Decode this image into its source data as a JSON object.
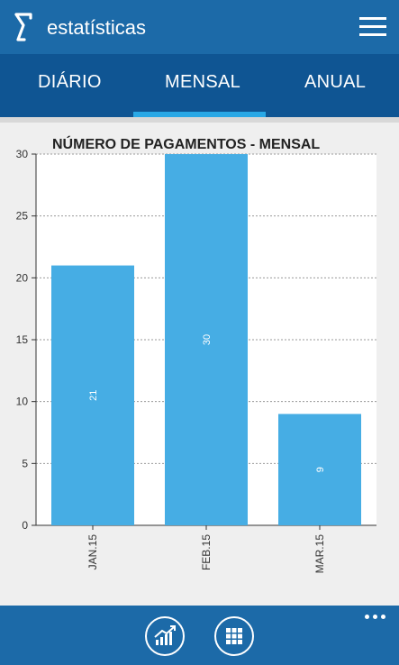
{
  "header": {
    "title": "estatísticas"
  },
  "tabs": [
    {
      "label": "DIÁRIO"
    },
    {
      "label": "MENSAL"
    },
    {
      "label": "ANUAL"
    }
  ],
  "selected_tab": "MENSAL",
  "colors": {
    "header": "#1c6aa8",
    "tabs": "#0f5593",
    "accent": "#29a8e6",
    "bar": "#46ade4"
  },
  "icons": {
    "logo": "sigma-logo-icon",
    "menu": "hamburger-menu-icon",
    "stats": "growth-chart-icon",
    "grid": "grid-icon",
    "more": "more-dots-icon"
  },
  "chart_data": {
    "type": "bar",
    "title": "NÚMERO DE PAGAMENTOS - MENSAL",
    "categories": [
      "JAN.15",
      "FEB.15",
      "MAR.15"
    ],
    "values": [
      21,
      30,
      9
    ],
    "ylim": [
      0,
      30
    ],
    "yticks": [
      0,
      5,
      10,
      15,
      20,
      25,
      30
    ],
    "grid": true,
    "data_labels": true,
    "xlabel": "",
    "ylabel": ""
  }
}
